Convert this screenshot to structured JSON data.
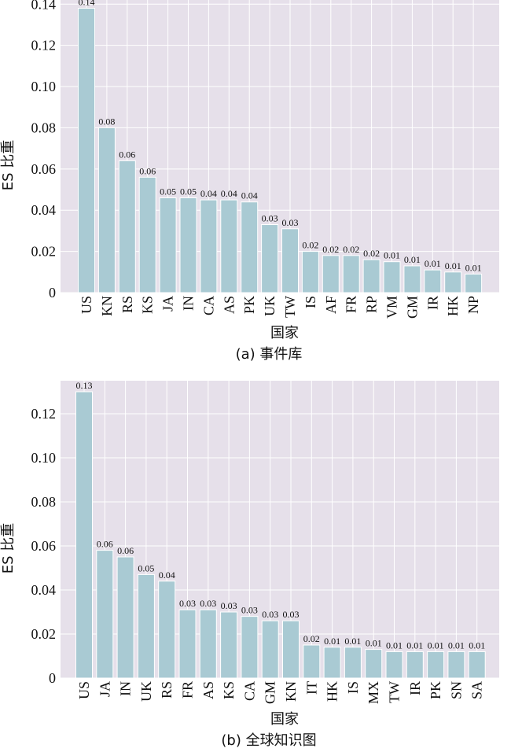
{
  "chart_data": [
    {
      "type": "bar",
      "caption": "(a) 事件库",
      "xlabel": "国家",
      "ylabel": "ES 比重",
      "ylim": [
        0,
        0.142
      ],
      "yticks": [
        "0",
        "0.02",
        "0.04",
        "0.06",
        "0.08",
        "0.10",
        "0.12",
        "0.14"
      ],
      "ytick_values": [
        0,
        0.02,
        0.04,
        0.06,
        0.08,
        0.1,
        0.12,
        0.14
      ],
      "grid": true,
      "categories": [
        "US",
        "KN",
        "RS",
        "KS",
        "JA",
        "IN",
        "CA",
        "AS",
        "PK",
        "UK",
        "TW",
        "IS",
        "AF",
        "FR",
        "RP",
        "VM",
        "GM",
        "IR",
        "HK",
        "NP"
      ],
      "values": [
        0.138,
        0.08,
        0.064,
        0.056,
        0.046,
        0.046,
        0.045,
        0.045,
        0.044,
        0.033,
        0.031,
        0.02,
        0.018,
        0.018,
        0.016,
        0.015,
        0.013,
        0.011,
        0.01,
        0.009
      ],
      "labels": [
        "0.14",
        "0.08",
        "0.06",
        "0.06",
        "0.05",
        "0.05",
        "0.04",
        "0.04",
        "0.04",
        "0.03",
        "0.03",
        "0.02",
        "0.02",
        "0.02",
        "0.02",
        "0.01",
        "0.01",
        "0.01",
        "0.01",
        "0.01"
      ]
    },
    {
      "type": "bar",
      "caption": "(b) 全球知识图",
      "xlabel": "国家",
      "ylabel": "ES 比重",
      "ylim": [
        0,
        0.135
      ],
      "yticks": [
        "0",
        "0.02",
        "0.04",
        "0.06",
        "0.08",
        "0.10",
        "0.12"
      ],
      "ytick_values": [
        0,
        0.02,
        0.04,
        0.06,
        0.08,
        0.1,
        0.12
      ],
      "grid": true,
      "categories": [
        "US",
        "JA",
        "IN",
        "UK",
        "RS",
        "FR",
        "AS",
        "KS",
        "CA",
        "GM",
        "KN",
        "IT",
        "HK",
        "IS",
        "MX",
        "TW",
        "IR",
        "PK",
        "SN",
        "SA"
      ],
      "values": [
        0.13,
        0.058,
        0.055,
        0.047,
        0.044,
        0.031,
        0.031,
        0.03,
        0.028,
        0.026,
        0.026,
        0.015,
        0.014,
        0.014,
        0.013,
        0.012,
        0.012,
        0.012,
        0.012,
        0.012
      ],
      "labels": [
        "0.13",
        "0.06",
        "0.06",
        "0.05",
        "0.04",
        "0.03",
        "0.03",
        "0.03",
        "0.03",
        "0.03",
        "0.03",
        "0.02",
        "0.01",
        "0.01",
        "0.01",
        "0.01",
        "0.01",
        "0.01",
        "0.01",
        "0.01"
      ]
    }
  ],
  "colors": {
    "bar": "#a9cad3",
    "plot_bg": "#e6e0ea",
    "grid": "#ffffff"
  }
}
